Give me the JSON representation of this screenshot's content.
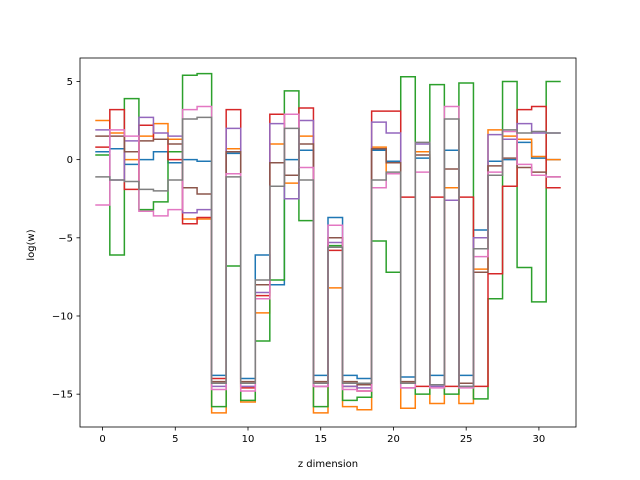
{
  "chart_data": {
    "type": "line",
    "drawstyle": "steps-mid",
    "xlabel": "z dimension",
    "ylabel": "log(w)",
    "xlim": [
      -1.55,
      32.55
    ],
    "ylim": [
      -17.1,
      6.5
    ],
    "xticks": [
      0,
      5,
      10,
      15,
      20,
      25,
      30
    ],
    "yticks": [
      5,
      0,
      -5,
      -10,
      -15
    ],
    "x": [
      0,
      1,
      2,
      3,
      4,
      5,
      6,
      7,
      8,
      9,
      10,
      11,
      12,
      13,
      14,
      15,
      16,
      17,
      18,
      19,
      20,
      21,
      22,
      23,
      24,
      25,
      26,
      27,
      28,
      29,
      30,
      31
    ],
    "series": [
      {
        "color": "#1f77b4",
        "values": [
          0.5,
          0.7,
          -0.3,
          0.0,
          0.5,
          -0.2,
          0.0,
          -0.1,
          -13.8,
          0.4,
          -14.0,
          -6.1,
          -8.0,
          0.0,
          0.6,
          -13.8,
          -3.7,
          -13.8,
          -14.0,
          0.6,
          -0.1,
          -13.9,
          0.1,
          -13.8,
          0.6,
          -13.8,
          -4.5,
          -0.1,
          0.0,
          1.1,
          0.1,
          0.0
        ]
      },
      {
        "color": "#ff7f0e",
        "values": [
          2.5,
          1.7,
          0.0,
          1.5,
          2.3,
          1.3,
          -3.8,
          -3.8,
          -16.2,
          0.7,
          -15.5,
          -9.8,
          1.0,
          -1.5,
          1.5,
          -16.2,
          -8.2,
          -15.8,
          -16.0,
          0.8,
          -0.9,
          -15.9,
          0.5,
          -15.6,
          -1.8,
          -15.6,
          -7.0,
          1.9,
          1.5,
          1.3,
          0.2,
          0.0
        ]
      },
      {
        "color": "#2ca02c",
        "values": [
          0.3,
          -6.1,
          3.9,
          -3.2,
          -2.7,
          0.5,
          5.4,
          5.5,
          -15.8,
          -6.8,
          -15.4,
          -11.6,
          -7.7,
          4.4,
          -3.9,
          -15.8,
          -5.5,
          -15.4,
          -15.2,
          -5.2,
          -7.2,
          5.3,
          -15.0,
          4.8,
          -15.0,
          4.9,
          -15.3,
          -8.9,
          5.0,
          -6.9,
          -9.1,
          5.0
        ]
      },
      {
        "color": "#d62728",
        "values": [
          0.8,
          3.2,
          -1.9,
          2.2,
          1.3,
          0.0,
          -4.1,
          -3.7,
          -14.0,
          3.2,
          -14.6,
          -8.7,
          2.9,
          -1.0,
          3.3,
          -14.5,
          -5.8,
          -14.5,
          -14.8,
          3.1,
          3.1,
          -2.4,
          -14.5,
          -2.4,
          -14.5,
          -2.4,
          -14.5,
          -7.3,
          -1.7,
          3.2,
          3.4,
          -1.8
        ]
      },
      {
        "color": "#9467bd",
        "values": [
          1.9,
          -1.3,
          1.2,
          2.7,
          1.7,
          1.5,
          -3.4,
          -3.2,
          -14.5,
          2.0,
          -14.5,
          -8.5,
          2.3,
          -2.5,
          2.5,
          -14.5,
          -5.3,
          -14.5,
          -14.6,
          2.4,
          1.7,
          -14.6,
          1.0,
          -14.5,
          -2.6,
          -14.5,
          -5.0,
          1.6,
          1.3,
          2.3,
          1.7,
          1.7
        ]
      },
      {
        "color": "#8c564b",
        "values": [
          1.5,
          1.5,
          0.5,
          1.2,
          1.3,
          1.0,
          -1.8,
          -2.2,
          -14.2,
          0.5,
          -14.2,
          -8.0,
          -0.2,
          -1.0,
          1.0,
          -14.2,
          -5.0,
          -14.2,
          -14.4,
          0.7,
          -0.2,
          -14.2,
          0.3,
          -14.4,
          -0.6,
          -14.3,
          -7.2,
          -0.4,
          0.1,
          -0.5,
          -0.8,
          -1.1
        ]
      },
      {
        "color": "#e377c2",
        "values": [
          -2.9,
          1.9,
          1.5,
          -3.3,
          -3.6,
          -3.2,
          3.2,
          3.4,
          -14.7,
          -0.9,
          -14.8,
          -8.9,
          -1.7,
          2.9,
          -0.5,
          -14.5,
          -4.2,
          -14.7,
          -14.8,
          -1.8,
          -0.9,
          -14.6,
          -0.8,
          -14.6,
          3.4,
          -14.6,
          -6.2,
          -0.8,
          1.8,
          -0.3,
          -1.0,
          -1.1
        ]
      },
      {
        "color": "#7f7f7f",
        "values": [
          -1.1,
          -1.3,
          -1.4,
          -1.9,
          -2.0,
          -1.3,
          2.6,
          2.7,
          -14.3,
          -1.1,
          -14.3,
          -7.7,
          -1.7,
          2.0,
          -1.3,
          -14.3,
          -5.6,
          -14.3,
          -14.3,
          -1.3,
          -0.8,
          -14.3,
          1.1,
          -14.4,
          2.6,
          -14.5,
          -5.7,
          -1.0,
          1.9,
          1.7,
          1.8,
          1.7
        ]
      }
    ]
  }
}
